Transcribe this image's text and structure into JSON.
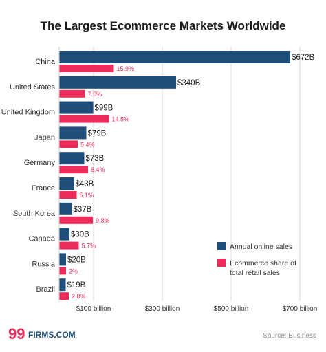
{
  "title": "The Largest Ecommerce Markets Worldwide",
  "branding": {
    "logo_number": "99",
    "logo_text": "FIRMS.COM"
  },
  "source": "Source: Business",
  "legend": [
    {
      "label_lines": [
        "Annual online sales"
      ],
      "color": "#1e4e79"
    },
    {
      "label_lines": [
        "Ecommerce share of",
        "total retail sales"
      ],
      "color": "#ec2c5a"
    }
  ],
  "chart_data": {
    "type": "bar",
    "orientation": "horizontal",
    "title": "The Largest Ecommerce Markets Worldwide",
    "categories": [
      "China",
      "United States",
      "United Kingdom",
      "Japan",
      "Germany",
      "France",
      "South Korea",
      "Canada",
      "Russia",
      "Brazil"
    ],
    "series": [
      {
        "name": "Annual online sales",
        "color": "#1e4e79",
        "values": [
          672,
          340,
          99,
          79,
          73,
          43,
          37,
          30,
          20,
          19
        ],
        "labels": [
          "$672B",
          "$340B",
          "$99B",
          "$79B",
          "$73B",
          "$43B",
          "$37B",
          "$30B",
          "$20B",
          "$19B"
        ]
      },
      {
        "name": "Ecommerce share of total retail sales",
        "color": "#ec2c5a",
        "values": [
          15.9,
          7.5,
          14.5,
          5.4,
          8.4,
          5.1,
          9.8,
          5.7,
          2,
          2.8
        ],
        "labels": [
          "15.9%",
          "7.5%",
          "14.5%",
          "5.4%",
          "8.4%",
          "5.1%",
          "9.8%",
          "5.7%",
          "2%",
          "2.8%"
        ]
      }
    ],
    "x_ticks": [
      100,
      300,
      500,
      700
    ],
    "x_tick_labels": [
      "$100 billion",
      "$300 billion",
      "$500 billion",
      "$700 billion"
    ],
    "xlim": [
      0,
      750
    ],
    "grid": true,
    "legend_position": "bottom-right"
  }
}
